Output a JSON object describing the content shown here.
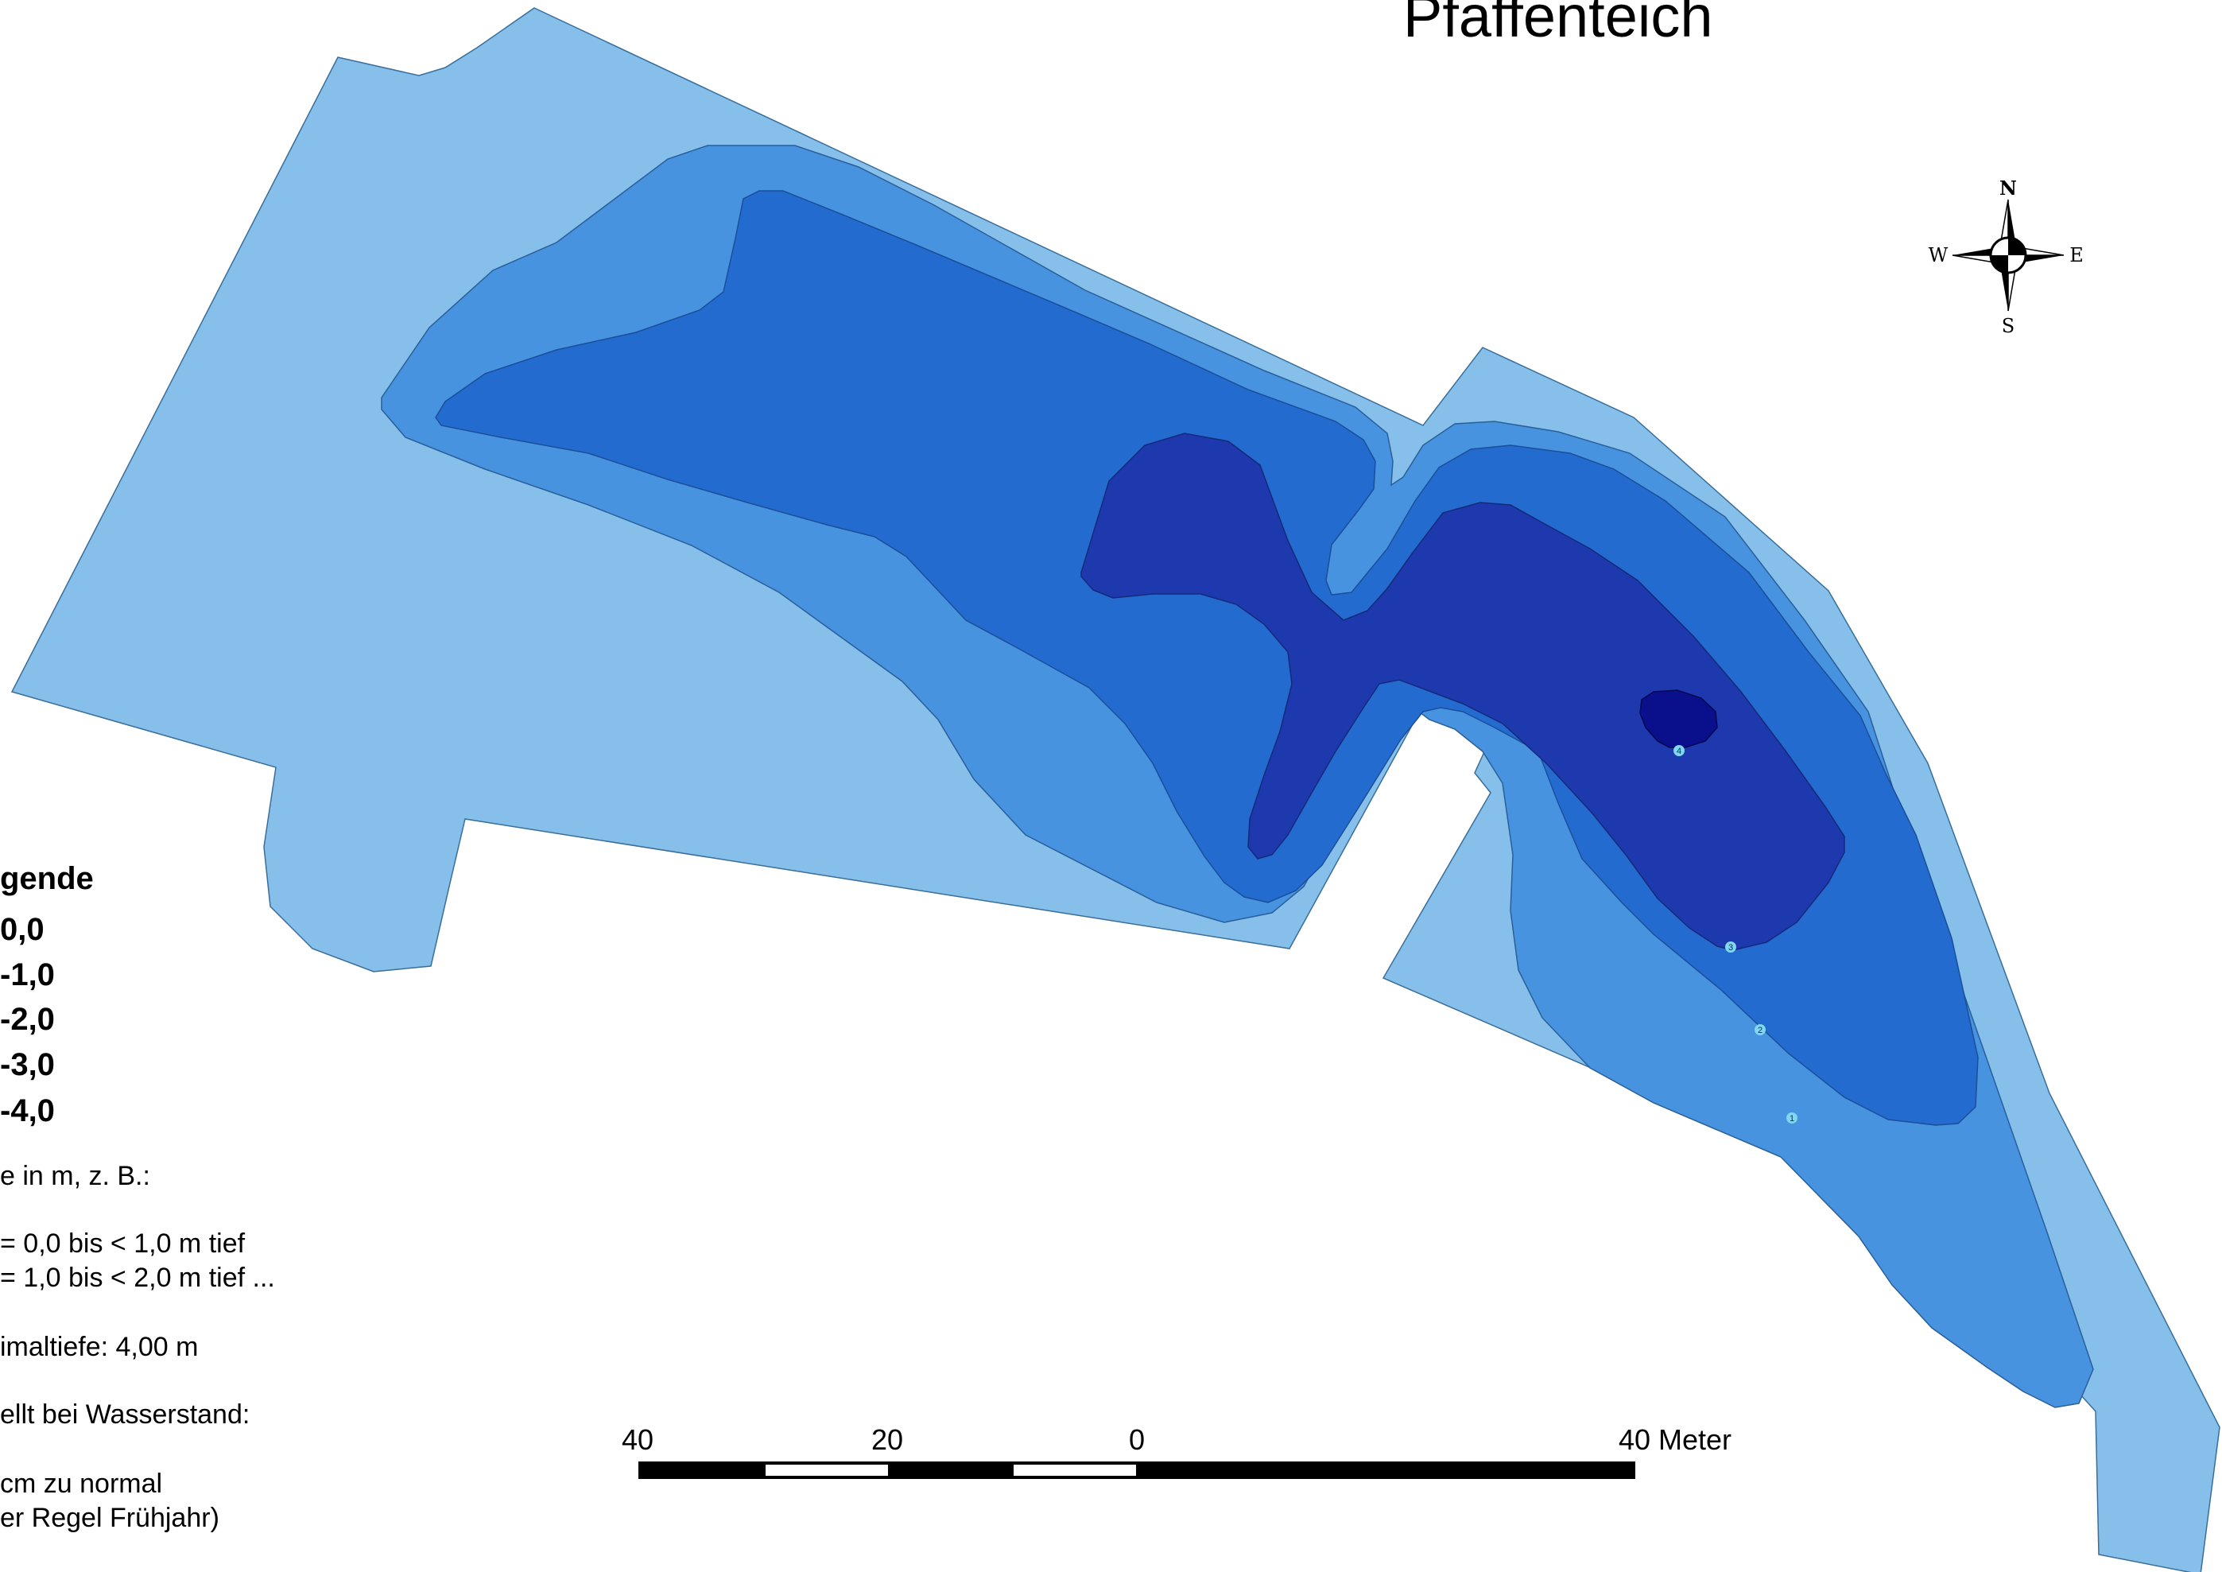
{
  "title": "Pfaffenteich",
  "compass": {
    "n": "N",
    "s": "S",
    "e": "E",
    "w": "W"
  },
  "legend": {
    "title": "gende",
    "items": [
      "0,0",
      "-1,0",
      "-2,0",
      "-3,0",
      "-4,0"
    ],
    "notes": [
      "e in m, z. B.:",
      "= 0,0 bis < 1,0 m tief",
      "= 1,0 bis < 2,0 m tief ...",
      "imaltiefe: 4,00 m",
      "ellt bei Wasserstand:",
      "cm zu normal",
      "er Regel Frühjahr)"
    ]
  },
  "scale_bar": {
    "labels": [
      "40",
      "20",
      "0",
      "40"
    ],
    "unit": "Meter"
  },
  "contour_labels": [
    "4",
    "3",
    "2",
    "1"
  ],
  "colors": {
    "depth_0": "#85BFEA",
    "depth_1": "#4793E0",
    "depth_2": "#246BD0",
    "depth_3": "#1E38AE",
    "depth_4": "#0A0F8C",
    "contour_label": "#7FD8F0"
  }
}
